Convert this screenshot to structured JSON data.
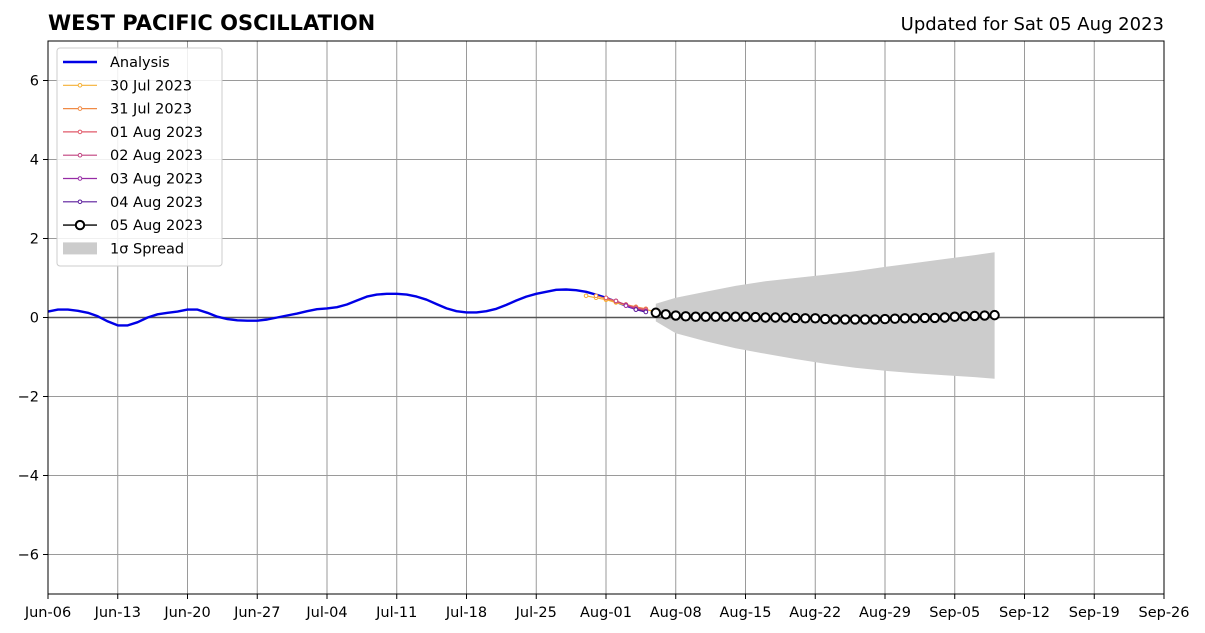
{
  "chart_data": {
    "type": "line",
    "title": "WEST PACIFIC OSCILLATION",
    "subtitle": "Updated for Sat 05 Aug 2023",
    "xlabel": "",
    "ylabel": "",
    "x_domain": [
      "2023-06-06",
      "2023-09-26"
    ],
    "ylim": [
      -7,
      7
    ],
    "x_ticks": [
      {
        "date": "2023-06-06",
        "label": "Jun-06"
      },
      {
        "date": "2023-06-13",
        "label": "Jun-13"
      },
      {
        "date": "2023-06-20",
        "label": "Jun-20"
      },
      {
        "date": "2023-06-27",
        "label": "Jun-27"
      },
      {
        "date": "2023-07-04",
        "label": "Jul-04"
      },
      {
        "date": "2023-07-11",
        "label": "Jul-11"
      },
      {
        "date": "2023-07-18",
        "label": "Jul-18"
      },
      {
        "date": "2023-07-25",
        "label": "Jul-25"
      },
      {
        "date": "2023-08-01",
        "label": "Aug-01"
      },
      {
        "date": "2023-08-08",
        "label": "Aug-08"
      },
      {
        "date": "2023-08-15",
        "label": "Aug-15"
      },
      {
        "date": "2023-08-22",
        "label": "Aug-22"
      },
      {
        "date": "2023-08-29",
        "label": "Aug-29"
      },
      {
        "date": "2023-09-05",
        "label": "Sep-05"
      },
      {
        "date": "2023-09-12",
        "label": "Sep-12"
      },
      {
        "date": "2023-09-19",
        "label": "Sep-19"
      },
      {
        "date": "2023-09-26",
        "label": "Sep-26"
      }
    ],
    "y_ticks": [
      {
        "value": 6,
        "label": "6"
      },
      {
        "value": 4,
        "label": "4"
      },
      {
        "value": 2,
        "label": "2"
      },
      {
        "value": 0,
        "label": "0"
      },
      {
        "value": -2,
        "label": "−2"
      },
      {
        "value": -4,
        "label": "−4"
      },
      {
        "value": -6,
        "label": "−6"
      }
    ],
    "grid": true,
    "legend_position": "top-left",
    "series": [
      {
        "name": "Analysis",
        "kind": "analysis",
        "color": "#0000e6",
        "points": [
          [
            "2023-06-06",
            0.15
          ],
          [
            "2023-06-07",
            0.2
          ],
          [
            "2023-06-08",
            0.2
          ],
          [
            "2023-06-09",
            0.17
          ],
          [
            "2023-06-10",
            0.12
          ],
          [
            "2023-06-11",
            0.03
          ],
          [
            "2023-06-12",
            -0.1
          ],
          [
            "2023-06-13",
            -0.2
          ],
          [
            "2023-06-14",
            -0.2
          ],
          [
            "2023-06-15",
            -0.12
          ],
          [
            "2023-06-16",
            0.0
          ],
          [
            "2023-06-17",
            0.08
          ],
          [
            "2023-06-18",
            0.12
          ],
          [
            "2023-06-19",
            0.15
          ],
          [
            "2023-06-20",
            0.2
          ],
          [
            "2023-06-21",
            0.2
          ],
          [
            "2023-06-22",
            0.12
          ],
          [
            "2023-06-23",
            0.02
          ],
          [
            "2023-06-24",
            -0.04
          ],
          [
            "2023-06-25",
            -0.07
          ],
          [
            "2023-06-26",
            -0.08
          ],
          [
            "2023-06-27",
            -0.08
          ],
          [
            "2023-06-28",
            -0.05
          ],
          [
            "2023-06-29",
            0.0
          ],
          [
            "2023-06-30",
            0.05
          ],
          [
            "2023-07-01",
            0.1
          ],
          [
            "2023-07-02",
            0.16
          ],
          [
            "2023-07-03",
            0.21
          ],
          [
            "2023-07-04",
            0.23
          ],
          [
            "2023-07-05",
            0.26
          ],
          [
            "2023-07-06",
            0.33
          ],
          [
            "2023-07-07",
            0.43
          ],
          [
            "2023-07-08",
            0.53
          ],
          [
            "2023-07-09",
            0.58
          ],
          [
            "2023-07-10",
            0.6
          ],
          [
            "2023-07-11",
            0.6
          ],
          [
            "2023-07-12",
            0.58
          ],
          [
            "2023-07-13",
            0.53
          ],
          [
            "2023-07-14",
            0.45
          ],
          [
            "2023-07-15",
            0.34
          ],
          [
            "2023-07-16",
            0.23
          ],
          [
            "2023-07-17",
            0.16
          ],
          [
            "2023-07-18",
            0.13
          ],
          [
            "2023-07-19",
            0.13
          ],
          [
            "2023-07-20",
            0.16
          ],
          [
            "2023-07-21",
            0.22
          ],
          [
            "2023-07-22",
            0.32
          ],
          [
            "2023-07-23",
            0.43
          ],
          [
            "2023-07-24",
            0.53
          ],
          [
            "2023-07-25",
            0.6
          ],
          [
            "2023-07-26",
            0.65
          ],
          [
            "2023-07-27",
            0.7
          ],
          [
            "2023-07-28",
            0.71
          ],
          [
            "2023-07-29",
            0.69
          ],
          [
            "2023-07-30",
            0.65
          ],
          [
            "2023-07-31",
            0.58
          ],
          [
            "2023-08-01",
            0.5
          ],
          [
            "2023-08-02",
            0.4
          ],
          [
            "2023-08-03",
            0.3
          ],
          [
            "2023-08-04",
            0.22
          ],
          [
            "2023-08-05",
            0.15
          ]
        ]
      },
      {
        "name": "30 Jul 2023",
        "kind": "forecast",
        "color": "#f5b034",
        "points": [
          [
            "2023-07-30",
            0.55
          ],
          [
            "2023-07-31",
            0.5
          ],
          [
            "2023-08-01",
            0.45
          ],
          [
            "2023-08-02",
            0.38
          ],
          [
            "2023-08-03",
            0.3
          ],
          [
            "2023-08-04",
            0.25
          ],
          [
            "2023-08-05",
            0.2
          ],
          [
            "2023-08-06",
            0.15
          ]
        ]
      },
      {
        "name": "31 Jul 2023",
        "kind": "forecast",
        "color": "#f08a45",
        "points": [
          [
            "2023-07-31",
            0.55
          ],
          [
            "2023-08-01",
            0.48
          ],
          [
            "2023-08-02",
            0.4
          ],
          [
            "2023-08-03",
            0.33
          ],
          [
            "2023-08-04",
            0.27
          ],
          [
            "2023-08-05",
            0.22
          ]
        ]
      },
      {
        "name": "01 Aug 2023",
        "kind": "forecast",
        "color": "#e05a6a",
        "points": [
          [
            "2023-08-01",
            0.5
          ],
          [
            "2023-08-02",
            0.42
          ],
          [
            "2023-08-03",
            0.32
          ],
          [
            "2023-08-04",
            0.25
          ],
          [
            "2023-08-05",
            0.2
          ]
        ]
      },
      {
        "name": "02 Aug 2023",
        "kind": "forecast",
        "color": "#c0407f",
        "points": [
          [
            "2023-08-02",
            0.42
          ],
          [
            "2023-08-03",
            0.32
          ],
          [
            "2023-08-04",
            0.22
          ],
          [
            "2023-08-05",
            0.17
          ]
        ]
      },
      {
        "name": "03 Aug 2023",
        "kind": "forecast",
        "color": "#962ba5",
        "points": [
          [
            "2023-08-03",
            0.3
          ],
          [
            "2023-08-04",
            0.2
          ],
          [
            "2023-08-05",
            0.15
          ]
        ]
      },
      {
        "name": "04 Aug 2023",
        "kind": "forecast",
        "color": "#5a1c9c",
        "points": [
          [
            "2023-08-04",
            0.2
          ],
          [
            "2023-08-05",
            0.14
          ]
        ]
      },
      {
        "name": "05 Aug 2023",
        "kind": "latest",
        "color": "#000000",
        "points": [
          [
            "2023-08-06",
            0.12
          ],
          [
            "2023-08-07",
            0.08
          ],
          [
            "2023-08-08",
            0.05
          ],
          [
            "2023-08-09",
            0.03
          ],
          [
            "2023-08-10",
            0.02
          ],
          [
            "2023-08-11",
            0.02
          ],
          [
            "2023-08-12",
            0.02
          ],
          [
            "2023-08-13",
            0.02
          ],
          [
            "2023-08-14",
            0.02
          ],
          [
            "2023-08-15",
            0.02
          ],
          [
            "2023-08-16",
            0.01
          ],
          [
            "2023-08-17",
            0.0
          ],
          [
            "2023-08-18",
            0.0
          ],
          [
            "2023-08-19",
            0.0
          ],
          [
            "2023-08-20",
            -0.01
          ],
          [
            "2023-08-21",
            -0.02
          ],
          [
            "2023-08-22",
            -0.02
          ],
          [
            "2023-08-23",
            -0.04
          ],
          [
            "2023-08-24",
            -0.05
          ],
          [
            "2023-08-25",
            -0.05
          ],
          [
            "2023-08-26",
            -0.05
          ],
          [
            "2023-08-27",
            -0.05
          ],
          [
            "2023-08-28",
            -0.05
          ],
          [
            "2023-08-29",
            -0.04
          ],
          [
            "2023-08-30",
            -0.03
          ],
          [
            "2023-08-31",
            -0.02
          ],
          [
            "2023-09-01",
            -0.02
          ],
          [
            "2023-09-02",
            -0.01
          ],
          [
            "2023-09-03",
            -0.01
          ],
          [
            "2023-09-04",
            0.0
          ],
          [
            "2023-09-05",
            0.02
          ],
          [
            "2023-09-06",
            0.03
          ],
          [
            "2023-09-07",
            0.04
          ],
          [
            "2023-09-08",
            0.05
          ],
          [
            "2023-09-09",
            0.06
          ]
        ]
      }
    ],
    "spread": {
      "name": "1σ Spread",
      "color": "#cccccc",
      "upper": [
        [
          "2023-08-06",
          0.35
        ],
        [
          "2023-08-08",
          0.5
        ],
        [
          "2023-08-11",
          0.65
        ],
        [
          "2023-08-14",
          0.8
        ],
        [
          "2023-08-17",
          0.92
        ],
        [
          "2023-08-20",
          1.0
        ],
        [
          "2023-08-23",
          1.08
        ],
        [
          "2023-08-26",
          1.17
        ],
        [
          "2023-08-29",
          1.28
        ],
        [
          "2023-09-01",
          1.38
        ],
        [
          "2023-09-04",
          1.48
        ],
        [
          "2023-09-07",
          1.58
        ],
        [
          "2023-09-09",
          1.65
        ]
      ],
      "lower": [
        [
          "2023-08-06",
          -0.1
        ],
        [
          "2023-08-08",
          -0.4
        ],
        [
          "2023-08-11",
          -0.6
        ],
        [
          "2023-08-14",
          -0.78
        ],
        [
          "2023-08-17",
          -0.92
        ],
        [
          "2023-08-20",
          -1.05
        ],
        [
          "2023-08-23",
          -1.17
        ],
        [
          "2023-08-26",
          -1.27
        ],
        [
          "2023-08-29",
          -1.35
        ],
        [
          "2023-09-01",
          -1.41
        ],
        [
          "2023-09-04",
          -1.46
        ],
        [
          "2023-09-07",
          -1.51
        ],
        [
          "2023-09-09",
          -1.55
        ]
      ]
    }
  }
}
